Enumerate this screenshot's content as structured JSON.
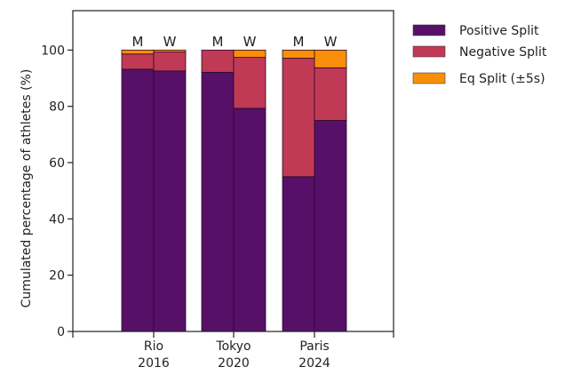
{
  "chart_data": {
    "type": "bar",
    "stacked": true,
    "title": "",
    "xlabel": "",
    "ylabel": "Cumulated percentage of athletes (%)",
    "ylim": [
      0,
      114
    ],
    "yticks": [
      0,
      20,
      40,
      60,
      80,
      100
    ],
    "grid": false,
    "legend_position": "top-right",
    "categories": [
      {
        "label_line1": "Rio",
        "label_line2": "2016"
      },
      {
        "label_line1": "Tokyo",
        "label_line2": "2020"
      },
      {
        "label_line1": "Paris",
        "label_line2": "2024"
      }
    ],
    "groups": [
      "M",
      "W"
    ],
    "bars": [
      {
        "category": "Rio 2016",
        "group": "M",
        "values": [
          93.2,
          5.4,
          1.4
        ]
      },
      {
        "category": "Rio 2016",
        "group": "W",
        "values": [
          92.6,
          6.7,
          0.7
        ]
      },
      {
        "category": "Tokyo 2020",
        "group": "M",
        "values": [
          92.1,
          7.9,
          0
        ]
      },
      {
        "category": "Tokyo 2020",
        "group": "W",
        "values": [
          79.3,
          18.1,
          2.6
        ]
      },
      {
        "category": "Paris 2024",
        "group": "M",
        "values": [
          55.0,
          42.1,
          2.9
        ]
      },
      {
        "category": "Paris 2024",
        "group": "W",
        "values": [
          75.0,
          18.7,
          6.3
        ]
      }
    ],
    "series": [
      {
        "name": "Positive Split",
        "color": "#561068"
      },
      {
        "name": "Negative Split",
        "color": "#c03a55"
      },
      {
        "name": "Eq Split (±5s)",
        "color": "#f98e09"
      }
    ]
  }
}
